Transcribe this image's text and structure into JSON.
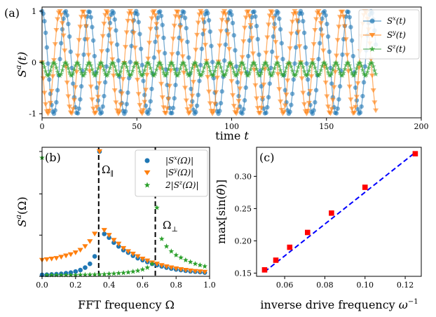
{
  "chart_data": [
    {
      "panel": "(a)",
      "type": "line",
      "xlabel": "time t",
      "ylabel": "S^a(t)",
      "xlim": [
        0,
        200
      ],
      "ylim": [
        -1.08,
        1.08
      ],
      "xticks": [
        0,
        50,
        100,
        150,
        200
      ],
      "yticks": [
        -1,
        0,
        1
      ],
      "series": [
        {
          "name": "S^x(t)",
          "marker": "circle",
          "color": "#1f77b4",
          "amplitude": 1.0,
          "period": 12.4,
          "phase_deg": 0,
          "offset": 0.0,
          "t_max": 176
        },
        {
          "name": "S^y(t)",
          "marker": "triangle-down",
          "color": "#ff7f0e",
          "amplitude": 1.0,
          "period": 12.4,
          "phase_deg": 90,
          "offset": 0.0,
          "t_max": 176
        },
        {
          "name": "S^z(t)",
          "marker": "star",
          "color": "#2ca02c",
          "amplitude": 0.13,
          "period": 6.2,
          "phase_deg": 0,
          "offset": -0.13,
          "t_max": 176
        }
      ],
      "legend": [
        "S^x(t)",
        "S^y(t)",
        "S^z(t)"
      ]
    },
    {
      "panel": "(b)",
      "type": "scatter",
      "xlabel": "FFT frequency Ω",
      "ylabel": "S^a(Ω)",
      "xlim": [
        0,
        1.0
      ],
      "ylim": [
        0,
        1.0
      ],
      "xticks": [
        0.0,
        0.2,
        0.4,
        0.6,
        0.8,
        1.0
      ],
      "xtick_labels": [
        "0.0",
        "0.2",
        "0.4",
        "0.6",
        "0.8",
        "1.0"
      ],
      "vlines": [
        {
          "x": 0.338,
          "label": "Ω∥"
        },
        {
          "x": 0.676,
          "label": "Ω⊥"
        }
      ],
      "series": [
        {
          "name": "|S^x(Ω)|",
          "marker": "circle",
          "color": "#1f77b4",
          "x": [
            0.0,
            0.0286,
            0.0571,
            0.0857,
            0.1143,
            0.1429,
            0.1714,
            0.2,
            0.2286,
            0.2571,
            0.2857,
            0.3143,
            0.3429,
            0.3714,
            0.4,
            0.4286,
            0.4571,
            0.4857,
            0.5143,
            0.5429,
            0.5714,
            0.6,
            0.6286,
            0.6571,
            0.6857,
            0.7143,
            0.7429,
            0.7714,
            0.8,
            0.8286,
            0.8571,
            0.8857,
            0.9143,
            0.9429,
            0.9714
          ],
          "y": [
            0.012,
            0.013,
            0.015,
            0.017,
            0.02,
            0.025,
            0.03,
            0.038,
            0.05,
            0.07,
            0.1,
            0.16,
            1.0,
            0.34,
            0.31,
            0.27,
            0.24,
            0.21,
            0.19,
            0.165,
            0.145,
            0.13,
            0.115,
            0.1,
            0.09,
            0.08,
            0.07,
            0.062,
            0.055,
            0.05,
            0.045,
            0.04,
            0.037,
            0.034,
            0.03
          ]
        },
        {
          "name": "|S^y(Ω)|",
          "marker": "triangle-down",
          "color": "#ff7f0e",
          "x": [
            0.0,
            0.0286,
            0.0571,
            0.0857,
            0.1143,
            0.1429,
            0.1714,
            0.2,
            0.2286,
            0.2571,
            0.2857,
            0.3143,
            0.3429,
            0.3714,
            0.4,
            0.4286,
            0.4571,
            0.4857,
            0.5143,
            0.5429,
            0.5714,
            0.6,
            0.6286,
            0.6571,
            0.6857,
            0.7143,
            0.7429,
            0.7714,
            0.8,
            0.8286,
            0.8571,
            0.8857,
            0.9143,
            0.9429,
            0.9714
          ],
          "y": [
            0.13,
            0.135,
            0.14,
            0.145,
            0.155,
            0.165,
            0.175,
            0.19,
            0.21,
            0.24,
            0.28,
            0.34,
            1.0,
            0.37,
            0.33,
            0.29,
            0.26,
            0.225,
            0.2,
            0.18,
            0.16,
            0.14,
            0.125,
            0.11,
            0.1,
            0.088,
            0.078,
            0.07,
            0.062,
            0.056,
            0.05,
            0.045,
            0.041,
            0.038,
            0.035
          ]
        },
        {
          "name": "2|S^z(Ω)|",
          "marker": "star",
          "color": "#2ca02c",
          "x": [
            0.0,
            0.0286,
            0.0571,
            0.0857,
            0.1143,
            0.1429,
            0.1714,
            0.2,
            0.2286,
            0.2571,
            0.2857,
            0.3143,
            0.3429,
            0.3714,
            0.4,
            0.4286,
            0.4571,
            0.4857,
            0.5143,
            0.5429,
            0.5714,
            0.6,
            0.6286,
            0.6571,
            0.6857,
            0.7143,
            0.7429,
            0.7714,
            0.8,
            0.8286,
            0.8571,
            0.8857,
            0.9143,
            0.9429,
            0.9714
          ],
          "y": [
            0.95,
            0.01,
            0.01,
            0.01,
            0.01,
            0.01,
            0.01,
            0.01,
            0.012,
            0.012,
            0.013,
            0.014,
            0.015,
            0.017,
            0.02,
            0.022,
            0.025,
            0.028,
            0.032,
            0.038,
            0.045,
            0.055,
            0.07,
            0.1,
            0.55,
            0.3,
            0.24,
            0.2,
            0.17,
            0.15,
            0.13,
            0.115,
            0.1,
            0.09,
            0.08
          ]
        }
      ],
      "legend": [
        "|S^x(Ω)|",
        "|S^y(Ω)|",
        "2|S^z(Ω)|"
      ]
    },
    {
      "panel": "(c)",
      "type": "scatter",
      "xlabel": "inverse drive frequency ω^-1",
      "ylabel": "max[sin(θ̄)]",
      "xlim": [
        0.046,
        0.128
      ],
      "ylim": [
        0.145,
        0.345
      ],
      "xticks": [
        0.06,
        0.08,
        0.1,
        0.12
      ],
      "xtick_labels": [
        "0.06",
        "0.08",
        "0.10",
        "0.12"
      ],
      "yticks": [
        0.15,
        0.2,
        0.25,
        0.3
      ],
      "ytick_labels": [
        "0.15",
        "0.20",
        "0.25",
        "0.30"
      ],
      "series": [
        {
          "name": "data",
          "marker": "square",
          "color": "#ff0000",
          "x": [
            0.05,
            0.0556,
            0.0625,
            0.0714,
            0.0833,
            0.1,
            0.125
          ],
          "y": [
            0.155,
            0.17,
            0.19,
            0.213,
            0.243,
            0.283,
            0.335
          ]
        },
        {
          "name": "fit",
          "type": "line",
          "style": "dashed",
          "color": "#0000ff",
          "x": [
            0.05,
            0.125
          ],
          "y": [
            0.152,
            0.337
          ]
        }
      ]
    }
  ]
}
